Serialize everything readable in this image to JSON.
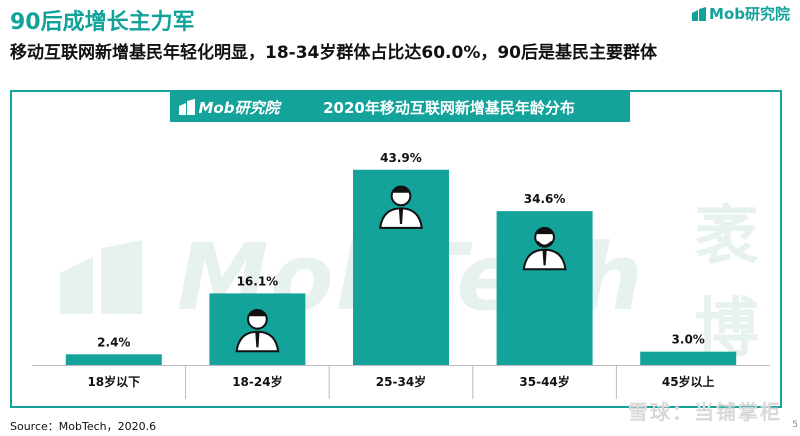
{
  "header": {
    "title": "90后成增长主力军",
    "subtitle": "移动互联网新增基民年轻化明显，18-34岁群体占比达60.0%，90后是基民主要群体"
  },
  "brand": {
    "logo_text": "Mob研究院"
  },
  "chart_header": {
    "logo_text": "Mob研究院",
    "title": "2020年移动互联网新增基民年龄分布"
  },
  "watermark": {
    "latin": "MobTech",
    "cn": "袤博"
  },
  "chart_data": {
    "type": "bar",
    "title": "2020年移动互联网新增基民年龄分布",
    "categories": [
      "18岁以下",
      "18-24岁",
      "25-34岁",
      "35-44岁",
      "45岁以上"
    ],
    "values": [
      2.4,
      16.1,
      43.9,
      34.6,
      3.0
    ],
    "value_labels": [
      "2.4%",
      "16.1%",
      "43.9%",
      "34.6%",
      "3.0%"
    ],
    "unit": "%",
    "ylim": [
      0,
      50
    ],
    "bar_color": "#13a39a",
    "grid": false,
    "legend": "none",
    "bar_icons": [
      "",
      "person-icon",
      "person-icon",
      "elder-person-icon",
      ""
    ]
  },
  "footer": {
    "source": "Source：MobTech，2020.6",
    "watermark": "雪球：当铺掌柜",
    "page_number": "5"
  }
}
